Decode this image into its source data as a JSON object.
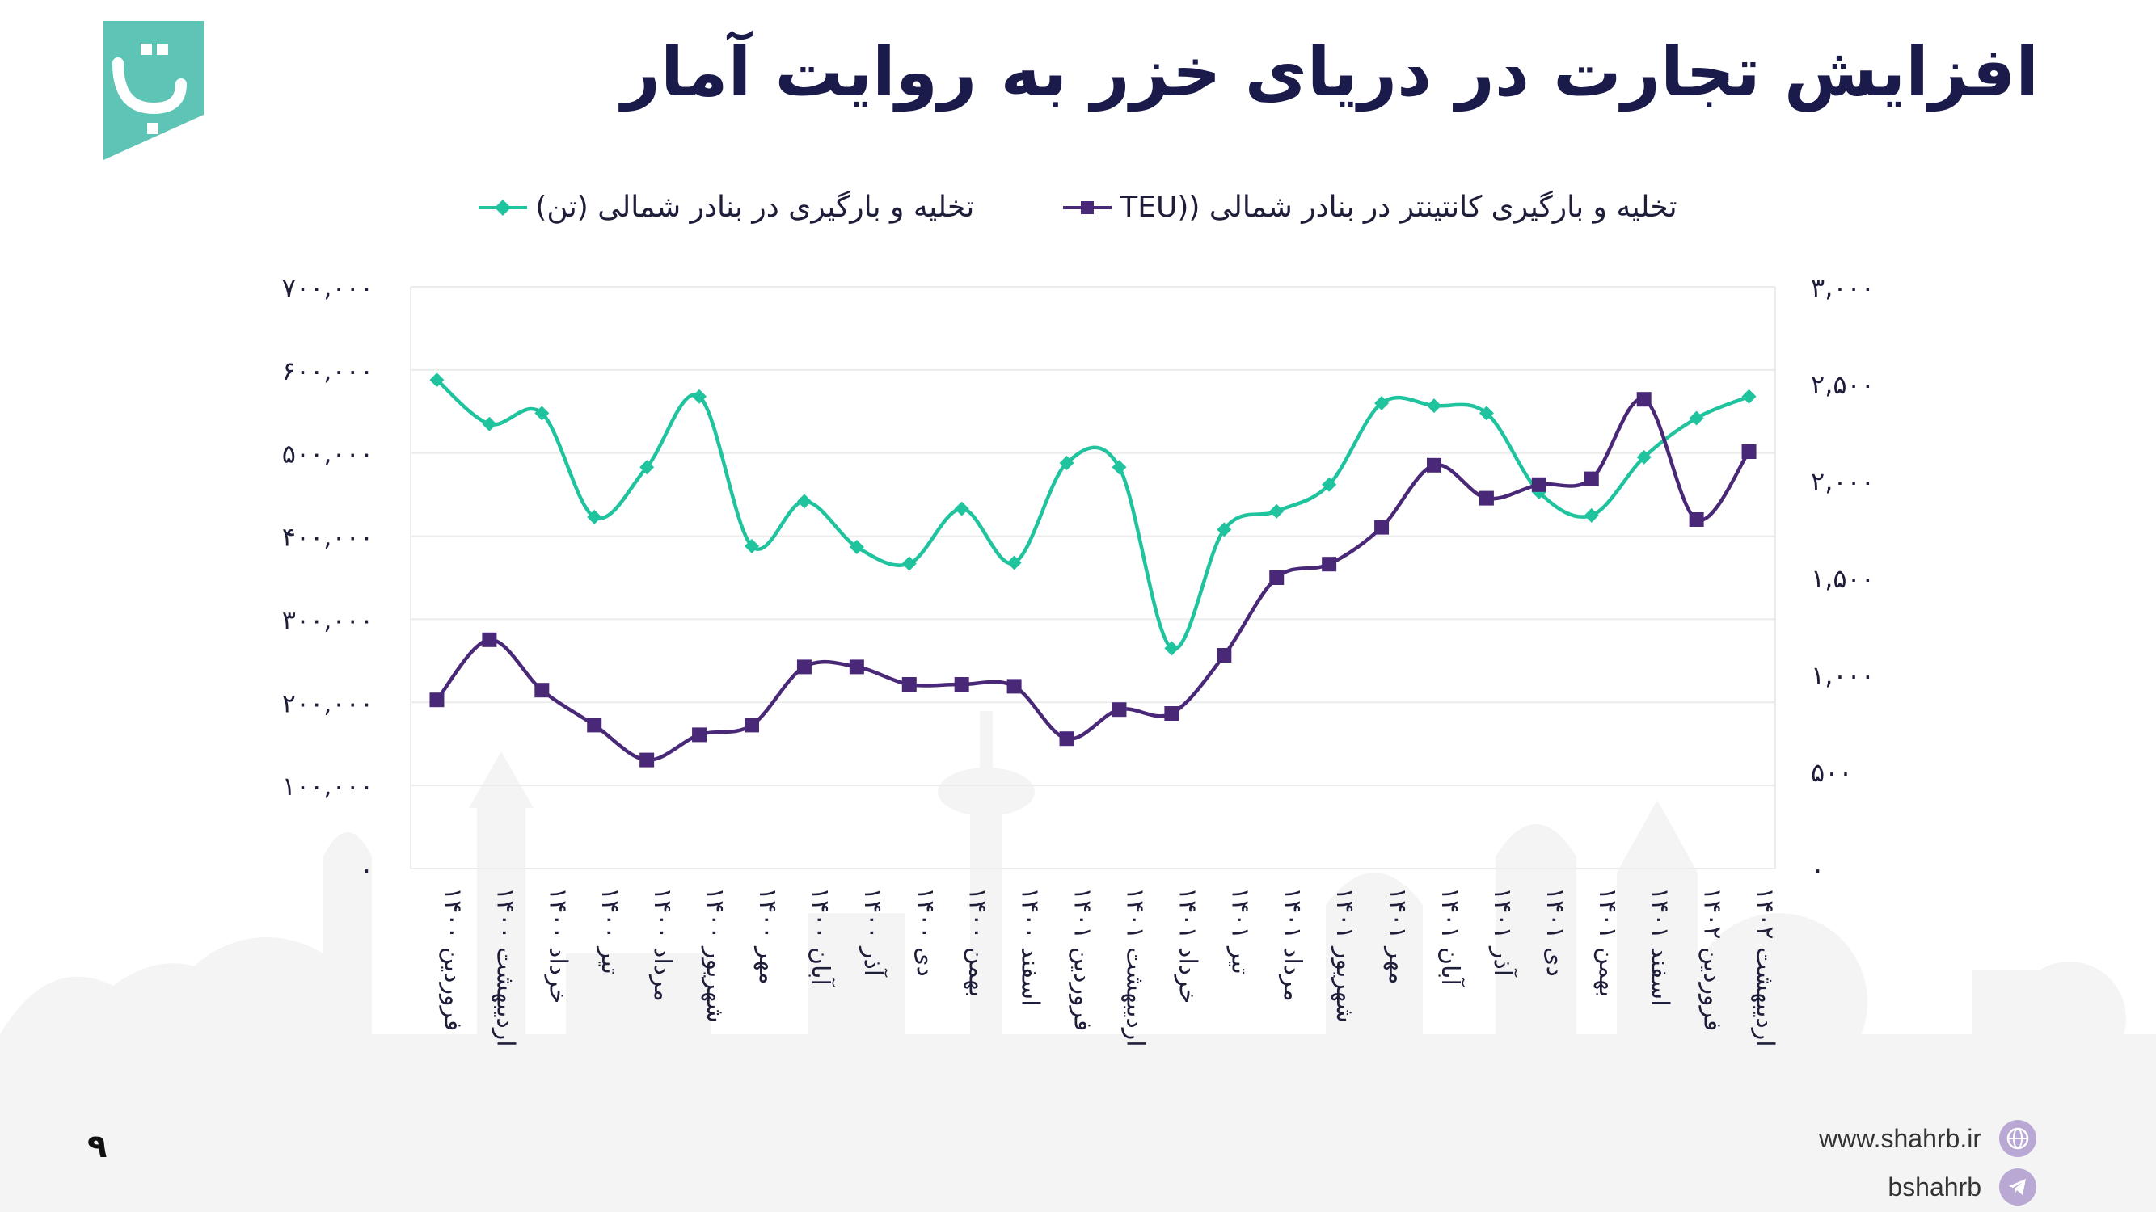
{
  "title": "افزایش تجارت در دریای خزر به روایت آمار",
  "page_number": "۹",
  "footer": {
    "website": "www.shahrb.ir",
    "telegram": "bshahrb"
  },
  "icons": {
    "logo": "shahrb-logo",
    "website": "globe-icon",
    "telegram": "telegram-icon"
  },
  "colors": {
    "title": "#1b1b4b",
    "teu_series": "#4a2878",
    "ton_series": "#1fc39e",
    "logo": "#5ec4b5"
  },
  "chart_data": {
    "type": "line",
    "title": "",
    "legend_placement": "top",
    "grid": true,
    "categories": [
      "فروردین ۱۴۰۰",
      "اردیبهشت ۱۴۰۰",
      "خرداد ۱۴۰۰",
      "تیر ۱۴۰۰",
      "مرداد ۱۴۰۰",
      "شهریور ۱۴۰۰",
      "مهر ۱۴۰۰",
      "آبان ۱۴۰۰",
      "آذر ۱۴۰۰",
      "دی ۱۴۰۰",
      "بهمن ۱۴۰۰",
      "اسفند ۱۴۰۰",
      "فروردین ۱۴۰۱",
      "اردیبهشت ۱۴۰۱",
      "خرداد ۱۴۰۱",
      "تیر ۱۴۰۱",
      "مرداد ۱۴۰۱",
      "شهریور ۱۴۰۱",
      "مهر ۱۴۰۱",
      "آبان ۱۴۰۱",
      "آذر ۱۴۰۱",
      "دی ۱۴۰۱",
      "بهمن ۱۴۰۱",
      "اسفند ۱۴۰۱",
      "فروردین ۱۴۰۲",
      "اردیبهشت ۱۴۰۲"
    ],
    "left_axis": {
      "ticks": [
        "۰",
        "۱۰۰,۰۰۰",
        "۲۰۰,۰۰۰",
        "۳۰۰,۰۰۰",
        "۴۰۰,۰۰۰",
        "۵۰۰,۰۰۰",
        "۶۰۰,۰۰۰",
        "۷۰۰,۰۰۰"
      ],
      "range": [
        0,
        700000
      ]
    },
    "right_axis": {
      "ticks": [
        "۰",
        "۵۰۰",
        "۱,۰۰۰",
        "۱,۵۰۰",
        "۲,۰۰۰",
        "۲,۵۰۰",
        "۳,۰۰۰"
      ],
      "range": [
        0,
        3000
      ]
    },
    "series": [
      {
        "name": "تخلیه و بارگیری در بنادر شمالی (تن)",
        "axis": "left",
        "marker": "diamond",
        "values": [
          588000,
          535000,
          548000,
          423000,
          483000,
          568000,
          388000,
          442000,
          387000,
          367000,
          433000,
          368000,
          488000,
          483000,
          265000,
          408000,
          430000,
          462000,
          560000,
          557000,
          548000,
          453000,
          425000,
          495000,
          542000,
          568000
        ]
      },
      {
        "name": "تخلیه و بارگیری کانتینتر در بنادر شمالی ((TEU",
        "axis": "right",
        "marker": "square",
        "values": [
          870,
          1180,
          920,
          740,
          560,
          690,
          740,
          1040,
          1040,
          950,
          950,
          940,
          670,
          820,
          800,
          1100,
          1500,
          1570,
          1760,
          2080,
          1910,
          1980,
          2010,
          2420,
          1800,
          2150
        ]
      }
    ]
  }
}
